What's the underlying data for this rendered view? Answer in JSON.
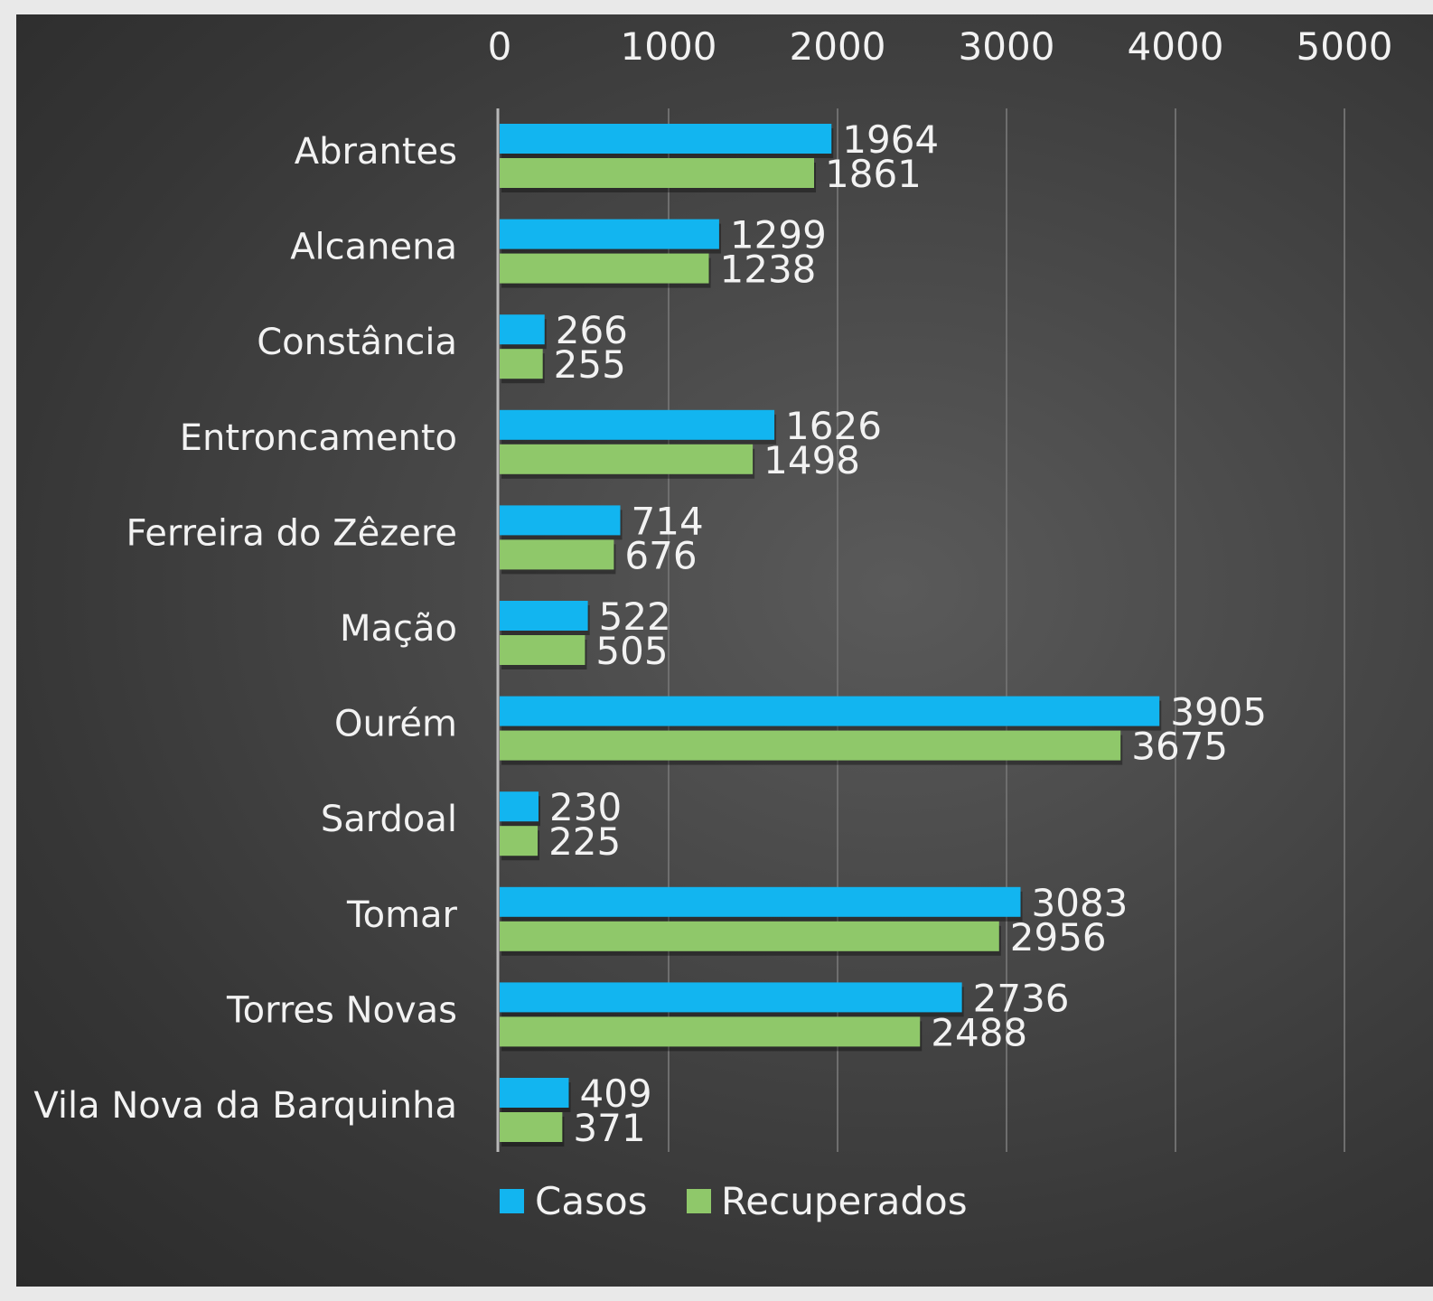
{
  "chart_data": {
    "type": "bar",
    "orientation": "horizontal",
    "categories": [
      "Abrantes",
      "Alcanena",
      "Constância",
      "Entroncamento",
      "Ferreira do Zêzere",
      "Mação",
      "Ourém",
      "Sardoal",
      "Tomar",
      "Torres Novas",
      "Vila Nova da Barquinha"
    ],
    "series": [
      {
        "name": "Casos",
        "color": "#12b5f0",
        "values": [
          1964,
          1299,
          266,
          1626,
          714,
          522,
          3905,
          230,
          3083,
          2736,
          409
        ]
      },
      {
        "name": "Recuperados",
        "color": "#8fc86a",
        "values": [
          1861,
          1238,
          255,
          1498,
          676,
          505,
          3675,
          225,
          2956,
          2488,
          371
        ]
      }
    ],
    "x_ticks": [
      "0",
      "1000",
      "2000",
      "3000",
      "4000",
      "5000"
    ],
    "xlim": [
      0,
      5000
    ],
    "axis_position": "top",
    "gridlines": true,
    "legend_position": "bottom",
    "data_labels": true
  }
}
